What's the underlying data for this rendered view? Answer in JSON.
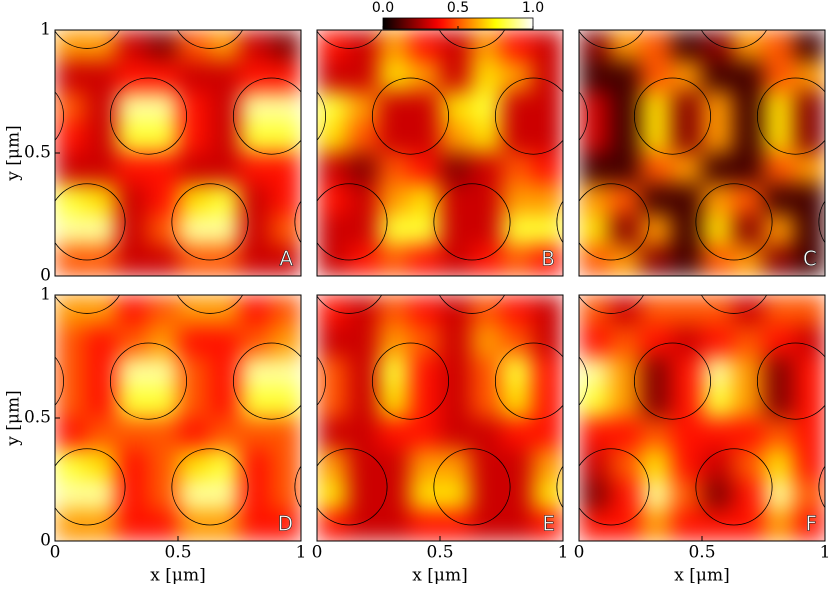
{
  "colorbar": {
    "lim": [
      0,
      1
    ],
    "ticks": [
      {
        "value": 0,
        "label": "0.0"
      },
      0.5,
      {
        "value": 1,
        "label": "1.0"
      }
    ]
  },
  "chart_data": [
    {
      "type": "heatmap",
      "label": "A",
      "ylabel": "y [μm]",
      "ylim": [
        0,
        1
      ],
      "yticks": [
        0,
        0.5,
        1
      ],
      "values": [
        [
          0.6,
          0.6,
          0.3,
          0.2,
          0.5,
          0.6,
          0.3,
          0.2
        ],
        [
          0.3,
          0.3,
          0.4,
          0.4,
          0.3,
          0.3,
          0.4,
          0.4
        ],
        [
          0.5,
          0.3,
          0.9,
          0.9,
          0.4,
          0.3,
          0.9,
          0.9
        ],
        [
          0.4,
          0.3,
          0.8,
          0.8,
          0.4,
          0.3,
          0.8,
          0.8
        ],
        [
          0.3,
          0.3,
          0.4,
          0.4,
          0.3,
          0.3,
          0.4,
          0.4
        ],
        [
          0.8,
          0.7,
          0.3,
          0.4,
          0.7,
          0.8,
          0.3,
          0.4
        ],
        [
          0.9,
          0.9,
          0.3,
          0.5,
          0.9,
          0.9,
          0.3,
          0.5
        ],
        [
          0.5,
          0.5,
          0.3,
          0.3,
          0.5,
          0.5,
          0.3,
          0.3
        ]
      ]
    },
    {
      "type": "heatmap",
      "label": "B",
      "values": [
        [
          0.4,
          0.3,
          0.6,
          0.4,
          0.3,
          0.6,
          0.4,
          0.3
        ],
        [
          0.3,
          0.3,
          0.7,
          0.6,
          0.3,
          0.7,
          0.6,
          0.3
        ],
        [
          0.8,
          0.6,
          0.3,
          0.3,
          0.7,
          0.8,
          0.3,
          0.3
        ],
        [
          0.7,
          0.5,
          0.3,
          0.3,
          0.6,
          0.7,
          0.3,
          0.3
        ],
        [
          0.3,
          0.2,
          0.5,
          0.4,
          0.2,
          0.3,
          0.5,
          0.4
        ],
        [
          0.4,
          0.3,
          0.6,
          0.7,
          0.3,
          0.3,
          0.6,
          0.6
        ],
        [
          0.3,
          0.3,
          0.8,
          0.8,
          0.3,
          0.3,
          0.8,
          0.8
        ],
        [
          0.3,
          0.4,
          0.5,
          0.4,
          0.3,
          0.4,
          0.5,
          0.4
        ]
      ]
    },
    {
      "type": "heatmap",
      "label": "C",
      "values": [
        [
          0.2,
          0.6,
          0.5,
          0.1,
          0.2,
          0.6,
          0.5,
          0.1
        ],
        [
          0.1,
          0.1,
          0.5,
          0.6,
          0.1,
          0.1,
          0.5,
          0.6
        ],
        [
          0.3,
          0.1,
          0.7,
          0.2,
          0.6,
          0.1,
          0.7,
          0.2
        ],
        [
          0.3,
          0.1,
          0.7,
          0.2,
          0.6,
          0.1,
          0.7,
          0.2
        ],
        [
          0.1,
          0.1,
          0.5,
          0.6,
          0.1,
          0.1,
          0.5,
          0.6
        ],
        [
          0.6,
          0.5,
          0.1,
          0.1,
          0.6,
          0.5,
          0.1,
          0.1
        ],
        [
          0.7,
          0.2,
          0.6,
          0.1,
          0.7,
          0.2,
          0.6,
          0.1
        ],
        [
          0.5,
          0.6,
          0.2,
          0.1,
          0.5,
          0.6,
          0.2,
          0.1
        ]
      ]
    },
    {
      "type": "heatmap",
      "label": "D",
      "xlabel": "x [μm]",
      "ylabel": "y [μm]",
      "xlim": [
        0,
        1
      ],
      "xticks": [
        0,
        0.5,
        1
      ],
      "ylim": [
        0,
        1
      ],
      "yticks": [
        0,
        0.5,
        1
      ],
      "values": [
        [
          0.6,
          0.6,
          0.4,
          0.5,
          0.6,
          0.6,
          0.4,
          0.5
        ],
        [
          0.5,
          0.4,
          0.5,
          0.6,
          0.4,
          0.4,
          0.5,
          0.6
        ],
        [
          0.5,
          0.4,
          0.9,
          0.9,
          0.5,
          0.4,
          0.9,
          0.9
        ],
        [
          0.5,
          0.4,
          0.8,
          0.8,
          0.5,
          0.4,
          0.8,
          0.8
        ],
        [
          0.4,
          0.5,
          0.5,
          0.5,
          0.4,
          0.5,
          0.5,
          0.5
        ],
        [
          0.8,
          0.7,
          0.4,
          0.5,
          0.7,
          0.8,
          0.4,
          0.5
        ],
        [
          0.9,
          0.9,
          0.4,
          0.5,
          0.9,
          0.9,
          0.4,
          0.5
        ],
        [
          0.6,
          0.6,
          0.4,
          0.4,
          0.6,
          0.6,
          0.4,
          0.4
        ]
      ]
    },
    {
      "type": "heatmap",
      "label": "E",
      "xlabel": "x [μm]",
      "xlim": [
        0,
        1
      ],
      "xticks": [
        0,
        0.5,
        1
      ],
      "values": [
        [
          0.4,
          0.3,
          0.5,
          0.4,
          0.3,
          0.5,
          0.4,
          0.3
        ],
        [
          0.3,
          0.3,
          0.6,
          0.5,
          0.3,
          0.6,
          0.5,
          0.3
        ],
        [
          0.5,
          0.3,
          0.8,
          0.4,
          0.3,
          0.5,
          0.8,
          0.4
        ],
        [
          0.5,
          0.3,
          0.7,
          0.4,
          0.3,
          0.5,
          0.7,
          0.4
        ],
        [
          0.3,
          0.3,
          0.4,
          0.4,
          0.3,
          0.3,
          0.4,
          0.4
        ],
        [
          0.6,
          0.3,
          0.3,
          0.6,
          0.6,
          0.3,
          0.3,
          0.6
        ],
        [
          0.7,
          0.3,
          0.3,
          0.7,
          0.7,
          0.3,
          0.3,
          0.7
        ],
        [
          0.4,
          0.3,
          0.3,
          0.4,
          0.4,
          0.3,
          0.3,
          0.4
        ]
      ]
    },
    {
      "type": "heatmap",
      "label": "F",
      "xlabel": "x [μm]",
      "xlim": [
        0,
        1
      ],
      "xticks": [
        0,
        0.5,
        1
      ],
      "values": [
        [
          0.5,
          0.3,
          0.5,
          0.5,
          0.5,
          0.3,
          0.5,
          0.5
        ],
        [
          0.4,
          0.5,
          0.4,
          0.3,
          0.4,
          0.5,
          0.4,
          0.3
        ],
        [
          0.9,
          0.6,
          0.2,
          0.4,
          0.9,
          0.6,
          0.2,
          0.4
        ],
        [
          0.8,
          0.6,
          0.2,
          0.4,
          0.8,
          0.6,
          0.2,
          0.4
        ],
        [
          0.4,
          0.4,
          0.5,
          0.4,
          0.4,
          0.4,
          0.5,
          0.4
        ],
        [
          0.3,
          0.5,
          0.7,
          0.4,
          0.3,
          0.5,
          0.7,
          0.4
        ],
        [
          0.2,
          0.4,
          0.9,
          0.5,
          0.2,
          0.4,
          0.9,
          0.5
        ],
        [
          0.4,
          0.4,
          0.6,
          0.4,
          0.4,
          0.4,
          0.6,
          0.4
        ]
      ]
    }
  ]
}
